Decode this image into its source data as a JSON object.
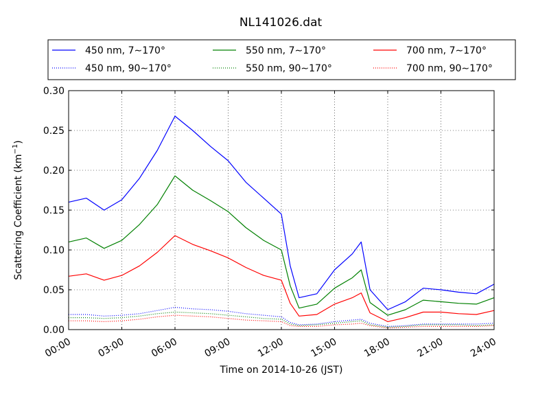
{
  "chart_data": {
    "type": "line",
    "title": "NL141026.dat",
    "xlabel": "Time on 2014-10-26 (JST)",
    "ylabel": "Scattering Coefficient (km",
    "ylabel_exp": "−1",
    "ylabel_close": ")",
    "xlim": [
      "00:00",
      "24:00"
    ],
    "ylim": [
      0,
      0.3
    ],
    "x_ticks": [
      "00:00",
      "03:00",
      "06:00",
      "09:00",
      "12:00",
      "15:00",
      "18:00",
      "21:00",
      "24:00"
    ],
    "y_ticks": [
      "0.00",
      "0.05",
      "0.10",
      "0.15",
      "0.20",
      "0.25",
      "0.30"
    ],
    "grid": true,
    "legend_position": "top-center (above plot)",
    "x_times": [
      "00:00",
      "01:00",
      "02:00",
      "03:00",
      "04:00",
      "05:00",
      "06:00",
      "07:00",
      "08:00",
      "09:00",
      "10:00",
      "11:00",
      "12:00",
      "12:30",
      "13:00",
      "14:00",
      "15:00",
      "16:00",
      "16:30",
      "17:00",
      "18:00",
      "19:00",
      "20:00",
      "21:00",
      "22:00",
      "23:00",
      "24:00"
    ],
    "series": [
      {
        "name": "450 nm, 7∼170°",
        "color": "#0000ff",
        "style": "solid",
        "values": [
          0.16,
          0.165,
          0.15,
          0.163,
          0.19,
          0.225,
          0.268,
          0.25,
          0.23,
          0.212,
          0.185,
          0.165,
          0.145,
          0.08,
          0.04,
          0.045,
          0.075,
          0.095,
          0.11,
          0.05,
          0.025,
          0.035,
          0.052,
          0.05,
          0.047,
          0.045,
          0.057
        ]
      },
      {
        "name": "550 nm, 7∼170°",
        "color": "#008000",
        "style": "solid",
        "values": [
          0.11,
          0.115,
          0.102,
          0.112,
          0.132,
          0.157,
          0.193,
          0.175,
          0.162,
          0.148,
          0.128,
          0.112,
          0.1,
          0.055,
          0.027,
          0.032,
          0.052,
          0.065,
          0.075,
          0.034,
          0.018,
          0.025,
          0.037,
          0.035,
          0.033,
          0.032,
          0.04
        ]
      },
      {
        "name": "700 nm, 7∼170°",
        "color": "#ff0000",
        "style": "solid",
        "values": [
          0.067,
          0.07,
          0.062,
          0.068,
          0.08,
          0.097,
          0.118,
          0.107,
          0.099,
          0.09,
          0.078,
          0.068,
          0.062,
          0.033,
          0.017,
          0.019,
          0.032,
          0.04,
          0.046,
          0.021,
          0.01,
          0.015,
          0.022,
          0.022,
          0.02,
          0.019,
          0.024
        ]
      },
      {
        "name": "450 nm, 90∼170°",
        "color": "#0000ff",
        "style": "dotted",
        "values": [
          0.019,
          0.019,
          0.017,
          0.018,
          0.02,
          0.024,
          0.028,
          0.026,
          0.025,
          0.023,
          0.02,
          0.018,
          0.016,
          0.009,
          0.006,
          0.007,
          0.01,
          0.012,
          0.013,
          0.008,
          0.004,
          0.005,
          0.007,
          0.007,
          0.007,
          0.007,
          0.008
        ]
      },
      {
        "name": "550 nm, 90∼170°",
        "color": "#008000",
        "style": "dotted",
        "values": [
          0.015,
          0.015,
          0.014,
          0.015,
          0.017,
          0.02,
          0.022,
          0.021,
          0.02,
          0.018,
          0.016,
          0.014,
          0.013,
          0.007,
          0.005,
          0.006,
          0.008,
          0.01,
          0.011,
          0.006,
          0.003,
          0.004,
          0.006,
          0.006,
          0.006,
          0.005,
          0.006
        ]
      },
      {
        "name": "700 nm, 90∼170°",
        "color": "#ff0000",
        "style": "dotted",
        "values": [
          0.011,
          0.011,
          0.01,
          0.011,
          0.013,
          0.016,
          0.018,
          0.017,
          0.016,
          0.014,
          0.012,
          0.011,
          0.01,
          0.005,
          0.004,
          0.004,
          0.006,
          0.007,
          0.008,
          0.005,
          0.002,
          0.003,
          0.004,
          0.004,
          0.004,
          0.004,
          0.005
        ]
      }
    ]
  }
}
